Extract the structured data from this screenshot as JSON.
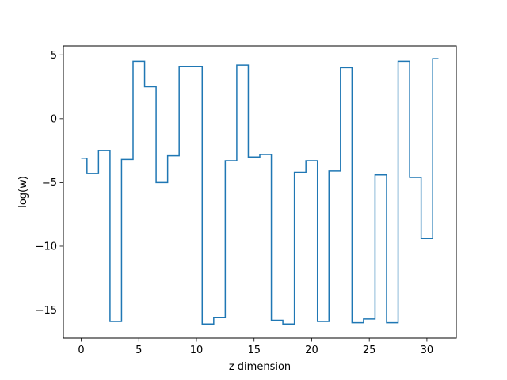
{
  "chart_data": {
    "type": "line",
    "step": "mid",
    "title": "",
    "xlabel": "z dimension",
    "ylabel": "log(w)",
    "xlim": [
      -1.55,
      32.55
    ],
    "ylim": [
      -17.2,
      5.7
    ],
    "xticks": [
      0,
      5,
      10,
      15,
      20,
      25,
      30
    ],
    "yticks": [
      -15,
      -10,
      -5,
      0,
      5
    ],
    "xtick_labels": [
      "0",
      "5",
      "10",
      "15",
      "20",
      "25",
      "30"
    ],
    "ytick_labels": [
      "−15",
      "−10",
      "−5",
      "0",
      "5"
    ],
    "grid": false,
    "legend": "none",
    "series": [
      {
        "color": "#1f77b4",
        "x": [
          0,
          1,
          2,
          3,
          4,
          5,
          6,
          7,
          8,
          9,
          10,
          11,
          12,
          13,
          14,
          15,
          16,
          17,
          18,
          19,
          20,
          21,
          22,
          23,
          24,
          25,
          26,
          27,
          28,
          29,
          30,
          31
        ],
        "y": [
          -3.1,
          -4.3,
          -2.5,
          -15.9,
          -3.2,
          4.5,
          2.5,
          -5.0,
          -2.9,
          4.1,
          4.1,
          -16.1,
          -15.6,
          -3.3,
          4.2,
          -3.0,
          -2.8,
          -15.8,
          -16.1,
          -4.2,
          -3.3,
          -15.9,
          -4.1,
          4.0,
          -16.0,
          -15.7,
          -4.4,
          -16.0,
          4.5,
          -4.6,
          -9.4,
          4.7
        ]
      }
    ]
  }
}
